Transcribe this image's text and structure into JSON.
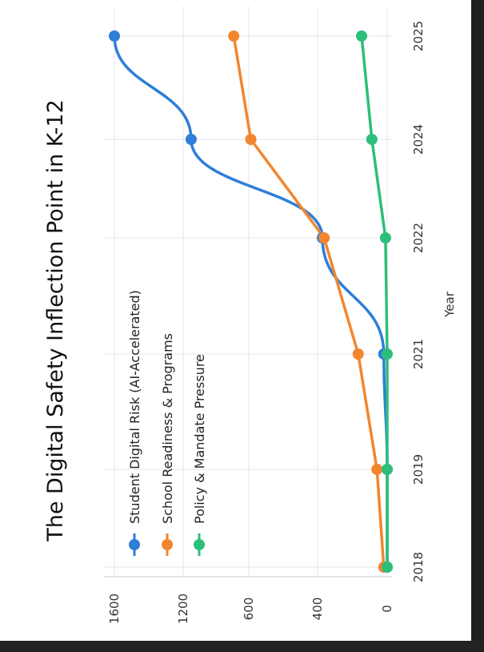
{
  "chart_data": {
    "type": "line",
    "title": "The Digital Safety Inflection Point in K-12",
    "xlabel": "Year",
    "ylabel": "",
    "x": [
      2018,
      2019,
      2021,
      2022,
      2024,
      2025
    ],
    "x_tick_labels": [
      "2018",
      "2019",
      "2021",
      "2022",
      "2024",
      "2025"
    ],
    "y_tick_labels": [
      "0",
      "400",
      "600",
      "1200",
      "1600"
    ],
    "y_tick_values": [
      0,
      400,
      600,
      1200,
      1600
    ],
    "grid": true,
    "legend_position": "top-left",
    "series": [
      {
        "name": "Student Digital Risk (AI-Accelerated)",
        "color": "#2f7ed8",
        "values": [
          0,
          0,
          20,
          380,
          1150,
          1600
        ],
        "curved": true
      },
      {
        "name": "School Readiness & Programs",
        "color": "#f2862e",
        "values": [
          20,
          60,
          170,
          370,
          800,
          900
        ],
        "curved": false
      },
      {
        "name": "Policy & Mandate Pressure",
        "color": "#2cbf7a",
        "values": [
          0,
          0,
          0,
          10,
          90,
          150
        ],
        "curved": false
      }
    ]
  }
}
